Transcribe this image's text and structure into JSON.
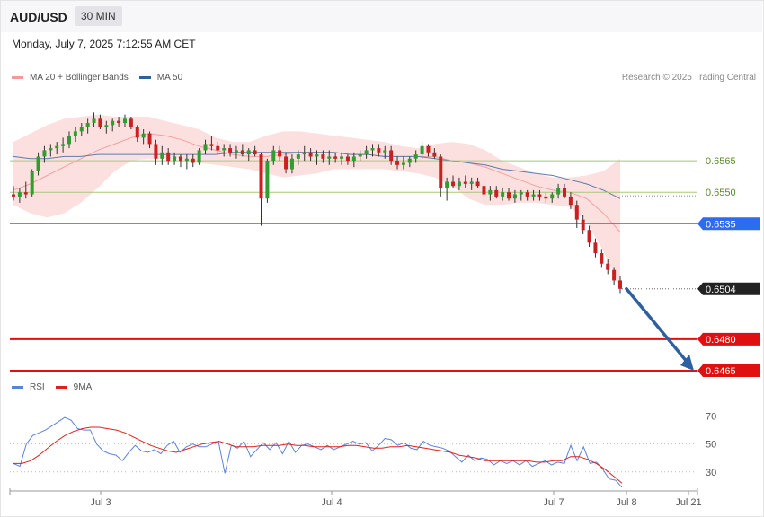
{
  "header": {
    "pair": "AUD/USD",
    "timeframe": "30 MIN",
    "datetime": "Monday, July 7, 2025 7:12:55 AM CET",
    "credit": "Research © 2025 Trading Central"
  },
  "legend_price": [
    {
      "label": "MA 20 + Bollinger Bands",
      "color": "#f49a9a"
    },
    {
      "label": "MA 50",
      "color": "#2e5f9e"
    }
  ],
  "legend_rsi": [
    {
      "label": "RSI",
      "color": "#5b83d6"
    },
    {
      "label": "9MA",
      "color": "#e02020"
    }
  ],
  "colors": {
    "bull": "#2e9e2e",
    "bear": "#cc1f1f",
    "support_line": "#2d6bf0",
    "target_line": "#e01010",
    "resistance_line": "#a8c878",
    "arrow": "#2e5f9e",
    "bollinger": "#fbdada"
  },
  "chart_data": [
    {
      "type": "candlestick",
      "title": "AUD/USD",
      "x_tick_labels": [
        "Jul 3",
        "Jul 4",
        "Jul 7",
        "Jul 8",
        "Jul 21"
      ],
      "y_range": [
        0.6462,
        0.6589
      ],
      "levels": [
        {
          "value": 0.6565,
          "label": "0.6565",
          "style": "resistance"
        },
        {
          "value": 0.655,
          "label": "0.6550",
          "style": "resistance"
        },
        {
          "value": 0.6535,
          "label": "0.6535",
          "style": "support"
        },
        {
          "value": 0.6504,
          "label": "0.6504",
          "style": "current"
        },
        {
          "value": 0.648,
          "label": "0.6480",
          "style": "target"
        },
        {
          "value": 0.6465,
          "label": "0.6465",
          "style": "target"
        }
      ],
      "forecast_arrow": {
        "from": 0.6504,
        "to": 0.6465
      },
      "candles": [
        [
          0.6549,
          0.6553,
          0.6546,
          0.6548
        ],
        [
          0.6548,
          0.6552,
          0.6545,
          0.655
        ],
        [
          0.655,
          0.6555,
          0.6547,
          0.6549
        ],
        [
          0.6549,
          0.6561,
          0.6548,
          0.656
        ],
        [
          0.656,
          0.6569,
          0.6558,
          0.6567
        ],
        [
          0.6567,
          0.6572,
          0.6564,
          0.657
        ],
        [
          0.657,
          0.6573,
          0.6567,
          0.6571
        ],
        [
          0.6571,
          0.6574,
          0.6568,
          0.6572
        ],
        [
          0.6572,
          0.6576,
          0.6569,
          0.6573
        ],
        [
          0.6573,
          0.6579,
          0.6571,
          0.6577
        ],
        [
          0.6577,
          0.6581,
          0.6574,
          0.6579
        ],
        [
          0.6579,
          0.6583,
          0.6577,
          0.6581
        ],
        [
          0.6581,
          0.6585,
          0.6578,
          0.6583
        ],
        [
          0.6583,
          0.6588,
          0.6581,
          0.6585
        ],
        [
          0.6585,
          0.6587,
          0.658,
          0.6581
        ],
        [
          0.6581,
          0.6584,
          0.6578,
          0.6582
        ],
        [
          0.6582,
          0.6585,
          0.6579,
          0.6584
        ],
        [
          0.6584,
          0.6586,
          0.6581,
          0.6583
        ],
        [
          0.6583,
          0.6587,
          0.6581,
          0.6585
        ],
        [
          0.6585,
          0.6586,
          0.658,
          0.6581
        ],
        [
          0.6581,
          0.6582,
          0.6574,
          0.6576
        ],
        [
          0.6576,
          0.658,
          0.6573,
          0.6578
        ],
        [
          0.6578,
          0.6579,
          0.6571,
          0.6573
        ],
        [
          0.6573,
          0.6575,
          0.6563,
          0.6566
        ],
        [
          0.6566,
          0.6572,
          0.6563,
          0.6569
        ],
        [
          0.6569,
          0.6571,
          0.6563,
          0.6565
        ],
        [
          0.6565,
          0.6569,
          0.6563,
          0.6567
        ],
        [
          0.6567,
          0.6568,
          0.6562,
          0.6565
        ],
        [
          0.6565,
          0.6568,
          0.6561,
          0.6566
        ],
        [
          0.6566,
          0.6568,
          0.6562,
          0.6564
        ],
        [
          0.6564,
          0.6571,
          0.6563,
          0.657
        ],
        [
          0.657,
          0.6575,
          0.6568,
          0.6573
        ],
        [
          0.6573,
          0.6577,
          0.657,
          0.6572
        ],
        [
          0.6572,
          0.6574,
          0.6568,
          0.657
        ],
        [
          0.657,
          0.6573,
          0.6567,
          0.6571
        ],
        [
          0.6571,
          0.6573,
          0.6567,
          0.6569
        ],
        [
          0.6569,
          0.6572,
          0.6566,
          0.657
        ],
        [
          0.657,
          0.6573,
          0.6567,
          0.6568
        ],
        [
          0.6568,
          0.6571,
          0.6565,
          0.657
        ],
        [
          0.657,
          0.6572,
          0.6567,
          0.6568
        ],
        [
          0.6568,
          0.6569,
          0.6534,
          0.6547
        ],
        [
          0.6547,
          0.6566,
          0.6545,
          0.6565
        ],
        [
          0.6565,
          0.6572,
          0.6563,
          0.657
        ],
        [
          0.657,
          0.6572,
          0.6565,
          0.6567
        ],
        [
          0.6567,
          0.6569,
          0.6559,
          0.6561
        ],
        [
          0.6561,
          0.6568,
          0.6559,
          0.6566
        ],
        [
          0.6566,
          0.657,
          0.6563,
          0.6568
        ],
        [
          0.6568,
          0.6572,
          0.6565,
          0.6569
        ],
        [
          0.6569,
          0.6571,
          0.6565,
          0.6567
        ],
        [
          0.6567,
          0.657,
          0.6563,
          0.6568
        ],
        [
          0.6568,
          0.657,
          0.6564,
          0.6566
        ],
        [
          0.6566,
          0.657,
          0.6563,
          0.6567
        ],
        [
          0.6567,
          0.6569,
          0.6564,
          0.6566
        ],
        [
          0.6566,
          0.6569,
          0.6563,
          0.6567
        ],
        [
          0.6567,
          0.6568,
          0.6563,
          0.6565
        ],
        [
          0.6565,
          0.6569,
          0.6562,
          0.6567
        ],
        [
          0.6567,
          0.657,
          0.6565,
          0.6568
        ],
        [
          0.6568,
          0.6572,
          0.6566,
          0.657
        ],
        [
          0.657,
          0.6573,
          0.6567,
          0.6571
        ],
        [
          0.6571,
          0.6573,
          0.6567,
          0.6569
        ],
        [
          0.6569,
          0.6572,
          0.6566,
          0.657
        ],
        [
          0.657,
          0.6572,
          0.6563,
          0.6565
        ],
        [
          0.6565,
          0.6567,
          0.6561,
          0.6563
        ],
        [
          0.6563,
          0.6567,
          0.6561,
          0.6564
        ],
        [
          0.6564,
          0.6567,
          0.6562,
          0.6566
        ],
        [
          0.6566,
          0.657,
          0.6564,
          0.6568
        ],
        [
          0.6568,
          0.6574,
          0.6566,
          0.6572
        ],
        [
          0.6572,
          0.6573,
          0.6567,
          0.6569
        ],
        [
          0.6569,
          0.6571,
          0.6566,
          0.6567
        ],
        [
          0.6567,
          0.6568,
          0.6548,
          0.6552
        ],
        [
          0.6552,
          0.6557,
          0.6546,
          0.6555
        ],
        [
          0.6555,
          0.6558,
          0.6552,
          0.6553
        ],
        [
          0.6553,
          0.6557,
          0.6551,
          0.6555
        ],
        [
          0.6555,
          0.6558,
          0.6552,
          0.6554
        ],
        [
          0.6554,
          0.6557,
          0.6551,
          0.6555
        ],
        [
          0.6555,
          0.6557,
          0.6552,
          0.6553
        ],
        [
          0.6553,
          0.6555,
          0.6546,
          0.6549
        ],
        [
          0.6549,
          0.6553,
          0.6546,
          0.6551
        ],
        [
          0.6551,
          0.6553,
          0.6547,
          0.6548
        ],
        [
          0.6548,
          0.6552,
          0.6546,
          0.655
        ],
        [
          0.655,
          0.6552,
          0.6546,
          0.6547
        ],
        [
          0.6547,
          0.6551,
          0.6545,
          0.6549
        ],
        [
          0.6549,
          0.6551,
          0.6546,
          0.655
        ],
        [
          0.655,
          0.6551,
          0.6546,
          0.6548
        ],
        [
          0.6548,
          0.6551,
          0.6546,
          0.6549
        ],
        [
          0.6549,
          0.6551,
          0.6546,
          0.6548
        ],
        [
          0.6548,
          0.655,
          0.6545,
          0.6547
        ],
        [
          0.6547,
          0.655,
          0.6545,
          0.6549
        ],
        [
          0.6549,
          0.6554,
          0.6547,
          0.6552
        ],
        [
          0.6552,
          0.6554,
          0.6547,
          0.6548
        ],
        [
          0.6548,
          0.655,
          0.6542,
          0.6544
        ],
        [
          0.6544,
          0.6546,
          0.6533,
          0.6537
        ],
        [
          0.6537,
          0.6539,
          0.653,
          0.6532
        ],
        [
          0.6532,
          0.6534,
          0.6524,
          0.6526
        ],
        [
          0.6526,
          0.6528,
          0.6519,
          0.6521
        ],
        [
          0.6521,
          0.6523,
          0.6514,
          0.6516
        ],
        [
          0.6516,
          0.6518,
          0.6511,
          0.6513
        ],
        [
          0.6513,
          0.6514,
          0.6506,
          0.6508
        ],
        [
          0.6508,
          0.651,
          0.6502,
          0.6504
        ]
      ],
      "bollinger": {
        "mid": [
          0.6551,
          0.6554,
          0.6558,
          0.6562,
          0.6566,
          0.657,
          0.6573,
          0.6576,
          0.6578,
          0.6577,
          0.6575,
          0.6572,
          0.657,
          0.6568,
          0.6567,
          0.6567,
          0.6568,
          0.6569,
          0.6569,
          0.6569,
          0.6568,
          0.6568,
          0.6567,
          0.6567,
          0.6567,
          0.6567,
          0.6565,
          0.6564,
          0.6562,
          0.6559,
          0.6556,
          0.6553,
          0.6551,
          0.655,
          0.6547,
          0.654,
          0.6531
        ],
        "upper": [
          0.6574,
          0.6578,
          0.6582,
          0.6585,
          0.6586,
          0.6587,
          0.6586,
          0.6586,
          0.6586,
          0.6584,
          0.6582,
          0.658,
          0.6576,
          0.6574,
          0.6574,
          0.6577,
          0.6579,
          0.6579,
          0.6578,
          0.6577,
          0.6576,
          0.6575,
          0.6574,
          0.6572,
          0.6571,
          0.6573,
          0.6574,
          0.6573,
          0.657,
          0.6565,
          0.6562,
          0.6559,
          0.6557,
          0.6557,
          0.6558,
          0.656,
          0.6566
        ],
        "lower": [
          0.6544,
          0.654,
          0.6538,
          0.654,
          0.6545,
          0.6552,
          0.656,
          0.6565,
          0.6566,
          0.6566,
          0.6566,
          0.6564,
          0.6563,
          0.6562,
          0.6561,
          0.6559,
          0.6557,
          0.6558,
          0.6559,
          0.6561,
          0.6561,
          0.6561,
          0.6561,
          0.656,
          0.6559,
          0.6557,
          0.6553,
          0.6547,
          0.6544,
          0.6544,
          0.6545,
          0.6545,
          0.6544,
          0.6543,
          0.6536,
          0.6522,
          0.6505
        ]
      },
      "ma50": [
        0.6567,
        0.6566,
        0.6566,
        0.6567,
        0.6567,
        0.6568,
        0.6568,
        0.6568,
        0.6568,
        0.6568,
        0.6568,
        0.6568,
        0.6568,
        0.6569,
        0.6569,
        0.6569,
        0.6569,
        0.6569,
        0.6569,
        0.6569,
        0.6568,
        0.6568,
        0.6567,
        0.6567,
        0.6567,
        0.6566,
        0.6565,
        0.6564,
        0.6563,
        0.6561,
        0.656,
        0.6559,
        0.6558,
        0.6556,
        0.6554,
        0.6551,
        0.6547
      ]
    },
    {
      "type": "line",
      "title": "RSI",
      "y_ticks": [
        70,
        50,
        30
      ],
      "y_range": [
        17,
        80
      ],
      "series": [
        {
          "name": "RSI",
          "values": [
            36,
            34,
            50,
            56,
            58,
            60,
            63,
            66,
            69,
            67,
            61,
            60,
            60,
            50,
            45,
            43,
            42,
            38,
            44,
            49,
            45,
            44,
            46,
            43,
            49,
            52,
            44,
            48,
            50,
            48,
            48,
            50,
            52,
            29,
            49,
            47,
            52,
            41,
            46,
            51,
            46,
            51,
            43,
            52,
            44,
            49,
            50,
            48,
            46,
            49,
            46,
            48,
            50,
            52,
            50,
            51,
            45,
            49,
            54,
            53,
            49,
            51,
            47,
            46,
            52,
            49,
            48,
            47,
            45,
            41,
            37,
            42,
            38,
            40,
            39,
            35,
            38,
            36,
            38,
            35,
            38,
            34,
            36,
            38,
            35,
            37,
            36,
            49,
            38,
            48,
            36,
            37,
            32,
            25,
            24,
            19
          ]
        },
        {
          "name": "9MA",
          "values": [
            36,
            36,
            38,
            42,
            47,
            52,
            56,
            59,
            61,
            62,
            62,
            61,
            60,
            58,
            55,
            52,
            49,
            47,
            45,
            44,
            46,
            48,
            50,
            51,
            52,
            50,
            48,
            48,
            48,
            49,
            49,
            49,
            50,
            49,
            49,
            48,
            48,
            48,
            48,
            49,
            49,
            48,
            47,
            47,
            48,
            48,
            49,
            48,
            47,
            46,
            45,
            44,
            42,
            41,
            40,
            38,
            38,
            38,
            38,
            38,
            38,
            37,
            37,
            38,
            38,
            41,
            41,
            39,
            36,
            32,
            27,
            22
          ]
        }
      ]
    }
  ]
}
